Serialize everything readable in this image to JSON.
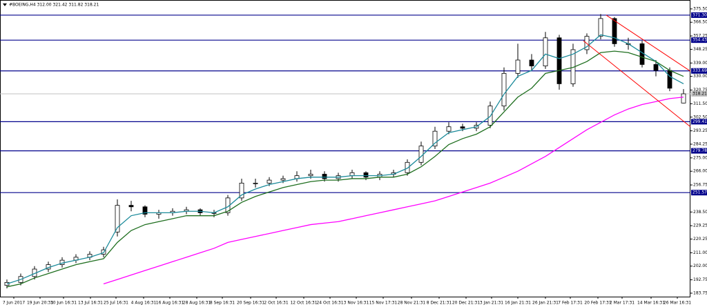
{
  "chart_data": {
    "type": "candlestick",
    "title": "#BOEING,H4 312.00 321.42 311.82 318.21",
    "xlim": [
      -0.5,
      49.5
    ],
    "ylim": [
      181.4,
      381.5
    ],
    "open": [
      189,
      191,
      195,
      200,
      203,
      206,
      208,
      210,
      225,
      243,
      242,
      237,
      238,
      239,
      240,
      238,
      238,
      248,
      258,
      258,
      260,
      261,
      263,
      264,
      261,
      263,
      265,
      262,
      264,
      265,
      272,
      283,
      293,
      296,
      295,
      297,
      310,
      332,
      341,
      337,
      356,
      325,
      348,
      357,
      369,
      352,
      352,
      338,
      334,
      312
    ],
    "high": [
      193,
      197,
      202,
      205,
      208,
      210,
      212,
      215,
      247,
      246,
      243,
      240,
      241,
      242,
      241,
      240,
      250,
      261,
      261,
      262,
      263,
      266,
      267,
      266,
      265,
      267,
      266,
      266,
      267,
      274,
      286,
      296,
      299,
      298,
      299,
      313,
      336,
      352,
      345,
      360,
      358,
      352,
      359,
      372,
      370,
      356,
      354,
      341,
      336,
      321.42
    ],
    "low": [
      187,
      189,
      193,
      198,
      201,
      204,
      206,
      208,
      222,
      239,
      235,
      234,
      236,
      237,
      236,
      235,
      236,
      246,
      255,
      256,
      258,
      259,
      261,
      259,
      259,
      261,
      260,
      260,
      262,
      263,
      270,
      281,
      291,
      293,
      293,
      295,
      307,
      329,
      334,
      335,
      321,
      323,
      345,
      355,
      350,
      348,
      336,
      330,
      320,
      311.82
    ],
    "close": [
      191,
      195,
      200,
      203,
      206,
      208,
      210,
      213,
      243,
      242,
      237,
      238,
      239,
      240,
      238,
      238,
      248,
      258,
      258,
      260,
      261,
      263,
      264,
      261,
      263,
      265,
      262,
      264,
      265,
      272,
      283,
      293,
      296,
      295,
      297,
      310,
      332,
      341,
      337,
      356,
      325,
      348,
      357,
      369,
      352,
      352,
      338,
      334,
      322,
      318.21
    ],
    "series": [
      {
        "color": "#1a8a9a",
        "values": [
          190,
          193,
          197,
          201,
          204,
          206,
          208,
          211,
          228,
          236,
          238,
          238,
          238,
          239,
          239,
          238,
          242,
          250,
          254,
          257,
          259,
          261,
          262,
          262,
          262,
          263,
          263,
          263,
          264,
          268,
          276,
          285,
          292,
          294,
          296,
          303,
          318,
          330,
          334,
          345,
          342,
          345,
          350,
          358,
          356,
          352,
          346,
          340,
          330,
          325
        ]
      },
      {
        "color": "#1e6e1e",
        "values": [
          188,
          190,
          194,
          197,
          200,
          203,
          205,
          207,
          218,
          226,
          230,
          232,
          234,
          236,
          236,
          236,
          239,
          245,
          249,
          252,
          255,
          257,
          259,
          260,
          260,
          261,
          261,
          262,
          262,
          264,
          269,
          276,
          284,
          288,
          291,
          296,
          306,
          316,
          322,
          332,
          334,
          336,
          340,
          346,
          347,
          346,
          343,
          340,
          334,
          330
        ]
      },
      {
        "color": "#ff00ff",
        "values": [
          null,
          null,
          null,
          null,
          null,
          null,
          null,
          190,
          193,
          196,
          199,
          202,
          205,
          208,
          211,
          214,
          218,
          220,
          222,
          224,
          226,
          228,
          230,
          231,
          232,
          234,
          236,
          238,
          240,
          242,
          244,
          246,
          249,
          252,
          255,
          258,
          262,
          266,
          271,
          276,
          282,
          288,
          294,
          299,
          304,
          308,
          311,
          313,
          315,
          316
        ]
      }
    ],
    "levels": [
      {
        "value": 371.3,
        "label": "371.30"
      },
      {
        "value": 354.43,
        "label": "354.43"
      },
      {
        "value": 333.69,
        "label": "333.69"
      },
      {
        "value": 299.41,
        "label": "299.41"
      },
      {
        "value": 279.78,
        "label": "279.78"
      },
      {
        "value": 251.57,
        "label": "251.57"
      }
    ],
    "level_color": "#00008b",
    "current_price": {
      "value": 318.21,
      "label": "318.21"
    },
    "channel_color": "#ff0000",
    "channel": [
      {
        "x": [
          43.4,
          49.5
        ],
        "y": [
          371.3,
          333.5
        ]
      },
      {
        "x": [
          41.75,
          49.5
        ],
        "y": [
          354,
          296
        ]
      }
    ],
    "yticks": [
      {
        "value": 375.5,
        "label": "375.50"
      },
      {
        "value": 366.5,
        "label": "366.50"
      },
      {
        "value": 357.25,
        "label": "357.25"
      },
      {
        "value": 348.25,
        "label": "348.25"
      },
      {
        "value": 339,
        "label": "339.00"
      },
      {
        "value": 330,
        "label": "330.00"
      },
      {
        "value": 320.75,
        "label": "320.75"
      },
      {
        "value": 311.5,
        "label": "311.50"
      },
      {
        "value": 302.5,
        "label": "302.50"
      },
      {
        "value": 293.25,
        "label": "293.25"
      },
      {
        "value": 284.25,
        "label": "284.25"
      },
      {
        "value": 275,
        "label": "275.00"
      },
      {
        "value": 266,
        "label": "266.00"
      },
      {
        "value": 256.75,
        "label": "256.75"
      },
      {
        "value": 238.5,
        "label": "238.50"
      },
      {
        "value": 229.25,
        "label": "229.25"
      },
      {
        "value": 220.25,
        "label": "220.25"
      },
      {
        "value": 211,
        "label": "211.00"
      },
      {
        "value": 202,
        "label": "202.00"
      },
      {
        "value": 192.75,
        "label": "192.75"
      },
      {
        "value": 183.75,
        "label": "183.75"
      }
    ],
    "xticks": [
      {
        "value": 0.5,
        "label": "7 Jun 2017"
      },
      {
        "value": 2.4,
        "label": "19 Jun 20:31"
      },
      {
        "value": 4.1,
        "label": "30 Jun 16:31"
      },
      {
        "value": 6.05,
        "label": "13 Jul 16:31"
      },
      {
        "value": 7.9,
        "label": "25 Jul 16:31"
      },
      {
        "value": 9.9,
        "label": "4 Aug 16:31"
      },
      {
        "value": 11.8,
        "label": "16 Aug 16:31"
      },
      {
        "value": 13.75,
        "label": "28 Aug 16:31"
      },
      {
        "value": 15.6,
        "label": "8 Sep 16:31"
      },
      {
        "value": 17.65,
        "label": "20 Sep 16:31"
      },
      {
        "value": 19.5,
        "label": "2 Oct 16:31"
      },
      {
        "value": 21.5,
        "label": "12 Oct 16:31"
      },
      {
        "value": 23.4,
        "label": "24 Oct 16:31"
      },
      {
        "value": 25.3,
        "label": "3 Nov 16:31"
      },
      {
        "value": 27.25,
        "label": "15 Nov 17:31"
      },
      {
        "value": 29.3,
        "label": "28 Nov 21:31"
      },
      {
        "value": 31.3,
        "label": "8 Dec 21:31"
      },
      {
        "value": 33.25,
        "label": "20 Dec 21:31"
      },
      {
        "value": 35.1,
        "label": "3 Jan 21:31"
      },
      {
        "value": 37,
        "label": "16 Jan 21:31"
      },
      {
        "value": 39,
        "label": "26 Jan 21:31"
      },
      {
        "value": 40.8,
        "label": "7 Feb 17:31"
      },
      {
        "value": 42.8,
        "label": "20 Feb 17:31"
      },
      {
        "value": 44.55,
        "label": "2 Mar 17:31"
      },
      {
        "value": 46.65,
        "label": "14 Mar 16:31"
      },
      {
        "value": 48.55,
        "label": "26 Mar 16:31"
      }
    ]
  }
}
